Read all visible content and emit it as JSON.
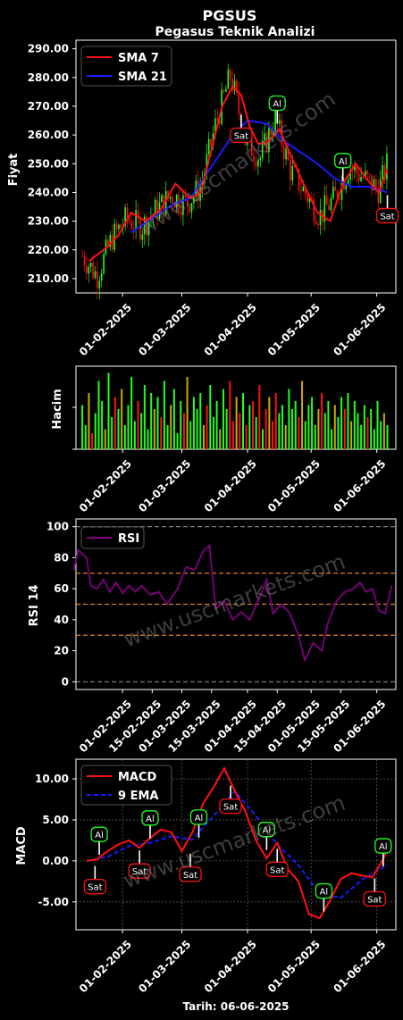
{
  "title": "PGSUS",
  "subtitle": "Pegasus Teknik Analizi",
  "footer": "Tarih: 06-06-2025",
  "watermark": "www.uscmarkets.com",
  "colors": {
    "up": "#22ff22",
    "down": "#ff1111",
    "sma7": "#ff1111",
    "sma21": "#1a1aff",
    "rsi": "#800080",
    "macd": "#ff1111",
    "ema": "#1a1aff",
    "buy": "#22ff22",
    "sell": "#ff1111"
  },
  "chart_data": [
    {
      "type": "candlestick",
      "ylabel": "Fiyat",
      "ylim": [
        205,
        293
      ],
      "yticks": [
        "210.00",
        "220.00",
        "230.00",
        "240.00",
        "250.00",
        "260.00",
        "270.00",
        "280.00",
        "290.00"
      ],
      "x_range": [
        "2025-01-10",
        "2025-06-10"
      ],
      "xticks": [
        "01-02-2025",
        "01-03-2025",
        "01-04-2025",
        "01-05-2025",
        "01-06-2025"
      ],
      "legend": [
        "SMA 7",
        "SMA 21"
      ],
      "close": [
        {
          "d": "2025-01-13",
          "v": 218
        },
        {
          "d": "2025-01-20",
          "v": 211
        },
        {
          "d": "2025-01-27",
          "v": 224
        },
        {
          "d": "2025-02-03",
          "v": 231
        },
        {
          "d": "2025-02-10",
          "v": 228
        },
        {
          "d": "2025-02-17",
          "v": 234
        },
        {
          "d": "2025-02-24",
          "v": 239
        },
        {
          "d": "2025-03-03",
          "v": 236
        },
        {
          "d": "2025-03-10",
          "v": 242
        },
        {
          "d": "2025-03-17",
          "v": 264
        },
        {
          "d": "2025-03-24",
          "v": 281
        },
        {
          "d": "2025-03-31",
          "v": 258
        },
        {
          "d": "2025-04-07",
          "v": 252
        },
        {
          "d": "2025-04-14",
          "v": 266
        },
        {
          "d": "2025-04-21",
          "v": 248
        },
        {
          "d": "2025-04-28",
          "v": 240
        },
        {
          "d": "2025-05-05",
          "v": 232
        },
        {
          "d": "2025-05-12",
          "v": 238
        },
        {
          "d": "2025-05-19",
          "v": 249
        },
        {
          "d": "2025-05-26",
          "v": 245
        },
        {
          "d": "2025-06-02",
          "v": 241
        },
        {
          "d": "2025-06-06",
          "v": 250
        }
      ],
      "sma7": [
        {
          "d": "2025-01-16",
          "v": 216
        },
        {
          "d": "2025-01-23",
          "v": 220
        },
        {
          "d": "2025-01-30",
          "v": 225
        },
        {
          "d": "2025-02-05",
          "v": 233
        },
        {
          "d": "2025-02-12",
          "v": 230
        },
        {
          "d": "2025-02-19",
          "v": 234
        },
        {
          "d": "2025-02-26",
          "v": 243
        },
        {
          "d": "2025-03-05",
          "v": 238
        },
        {
          "d": "2025-03-10",
          "v": 240
        },
        {
          "d": "2025-03-15",
          "v": 255
        },
        {
          "d": "2025-03-20",
          "v": 270
        },
        {
          "d": "2025-03-25",
          "v": 277
        },
        {
          "d": "2025-03-29",
          "v": 274
        },
        {
          "d": "2025-04-02",
          "v": 263
        },
        {
          "d": "2025-04-06",
          "v": 257
        },
        {
          "d": "2025-04-10",
          "v": 257
        },
        {
          "d": "2025-04-16",
          "v": 262
        },
        {
          "d": "2025-04-22",
          "v": 252
        },
        {
          "d": "2025-04-28",
          "v": 242
        },
        {
          "d": "2025-05-04",
          "v": 233
        },
        {
          "d": "2025-05-10",
          "v": 230
        },
        {
          "d": "2025-05-16",
          "v": 243
        },
        {
          "d": "2025-05-22",
          "v": 250
        },
        {
          "d": "2025-05-28",
          "v": 244
        },
        {
          "d": "2025-06-02",
          "v": 240
        },
        {
          "d": "2025-06-06",
          "v": 248
        }
      ],
      "sma21": [
        {
          "d": "2025-02-05",
          "v": 226
        },
        {
          "d": "2025-02-15",
          "v": 231
        },
        {
          "d": "2025-02-25",
          "v": 236
        },
        {
          "d": "2025-03-05",
          "v": 238
        },
        {
          "d": "2025-03-15",
          "v": 249
        },
        {
          "d": "2025-03-25",
          "v": 260
        },
        {
          "d": "2025-04-01",
          "v": 265
        },
        {
          "d": "2025-04-10",
          "v": 264
        },
        {
          "d": "2025-04-18",
          "v": 258
        },
        {
          "d": "2025-04-26",
          "v": 254
        },
        {
          "d": "2025-05-04",
          "v": 250
        },
        {
          "d": "2025-05-12",
          "v": 245
        },
        {
          "d": "2025-05-20",
          "v": 242
        },
        {
          "d": "2025-05-28",
          "v": 242
        },
        {
          "d": "2025-06-06",
          "v": 240
        }
      ],
      "signals": [
        {
          "label": "Sat",
          "d": "2025-03-29",
          "v": 268
        },
        {
          "label": "Al",
          "d": "2025-04-15",
          "v": 263
        },
        {
          "label": "Al",
          "d": "2025-05-16",
          "v": 243
        },
        {
          "label": "Sat",
          "d": "2025-06-06",
          "v": 240
        }
      ]
    },
    {
      "type": "bar",
      "ylabel": "Hacim",
      "xticks": [
        "01-02-2025",
        "01-03-2025",
        "01-04-2025",
        "01-05-2025",
        "01-06-2025"
      ],
      "volume": [
        0.55,
        0.3,
        0.7,
        0.2,
        0.45,
        0.85,
        0.6,
        0.25,
        0.95,
        0.4,
        0.65,
        0.5,
        0.75,
        0.3,
        0.55,
        0.9,
        0.35,
        0.6,
        0.45,
        0.8,
        0.25,
        0.7,
        0.5,
        0.65,
        0.4,
        0.85,
        0.3,
        0.55,
        0.75,
        0.2,
        0.6,
        0.45,
        0.9,
        0.35,
        0.65,
        0.5,
        0.7,
        0.3,
        0.55,
        0.8,
        0.4,
        0.6,
        0.25,
        0.75,
        0.5,
        0.85,
        0.35,
        0.65,
        0.45,
        0.7,
        0.3,
        0.55,
        0.6,
        0.4,
        0.8,
        0.25,
        0.5,
        0.65,
        0.35,
        0.7,
        0.45,
        0.55,
        0.3,
        0.75,
        0.5,
        0.6,
        0.4,
        0.85,
        0.35,
        0.55,
        0.65,
        0.3,
        0.5,
        0.7,
        0.45,
        0.6,
        0.25,
        0.55,
        0.4,
        0.65,
        0.5,
        0.7,
        0.35,
        0.6,
        0.45,
        0.3,
        0.55,
        0.4,
        0.5,
        0.25,
        0.6,
        0.35,
        0.45,
        0.3
      ]
    },
    {
      "type": "line",
      "ylabel": "RSI 14",
      "ylim": [
        -5,
        105
      ],
      "yticks": [
        "0",
        "20",
        "40",
        "60",
        "80",
        "100"
      ],
      "levels": [
        0,
        30,
        50,
        70,
        100
      ],
      "xticks": [
        "01-02-2025",
        "15-02-2025",
        "01-03-2025",
        "15-03-2025",
        "01-04-2025",
        "15-04-2025",
        "01-05-2025",
        "15-05-2025",
        "01-06-2025"
      ],
      "legend": [
        "RSI"
      ],
      "rsi": [
        {
          "d": "2025-01-09",
          "v": 72
        },
        {
          "d": "2025-01-11",
          "v": 85
        },
        {
          "d": "2025-01-15",
          "v": 80
        },
        {
          "d": "2025-01-17",
          "v": 62
        },
        {
          "d": "2025-01-20",
          "v": 60
        },
        {
          "d": "2025-01-23",
          "v": 66
        },
        {
          "d": "2025-01-26",
          "v": 58
        },
        {
          "d": "2025-01-29",
          "v": 64
        },
        {
          "d": "2025-02-01",
          "v": 57
        },
        {
          "d": "2025-02-04",
          "v": 62
        },
        {
          "d": "2025-02-07",
          "v": 58
        },
        {
          "d": "2025-02-10",
          "v": 62
        },
        {
          "d": "2025-02-14",
          "v": 56
        },
        {
          "d": "2025-02-18",
          "v": 58
        },
        {
          "d": "2025-02-22",
          "v": 50
        },
        {
          "d": "2025-02-27",
          "v": 60
        },
        {
          "d": "2025-03-03",
          "v": 74
        },
        {
          "d": "2025-03-07",
          "v": 72
        },
        {
          "d": "2025-03-11",
          "v": 84
        },
        {
          "d": "2025-03-14",
          "v": 88
        },
        {
          "d": "2025-03-17",
          "v": 47
        },
        {
          "d": "2025-03-21",
          "v": 52
        },
        {
          "d": "2025-03-25",
          "v": 40
        },
        {
          "d": "2025-03-29",
          "v": 45
        },
        {
          "d": "2025-04-02",
          "v": 40
        },
        {
          "d": "2025-04-06",
          "v": 52
        },
        {
          "d": "2025-04-10",
          "v": 66
        },
        {
          "d": "2025-04-13",
          "v": 44
        },
        {
          "d": "2025-04-17",
          "v": 50
        },
        {
          "d": "2025-04-21",
          "v": 44
        },
        {
          "d": "2025-04-25",
          "v": 30
        },
        {
          "d": "2025-04-28",
          "v": 14
        },
        {
          "d": "2025-05-02",
          "v": 25
        },
        {
          "d": "2025-05-06",
          "v": 20
        },
        {
          "d": "2025-05-09",
          "v": 38
        },
        {
          "d": "2025-05-13",
          "v": 52
        },
        {
          "d": "2025-05-17",
          "v": 58
        },
        {
          "d": "2025-05-21",
          "v": 60
        },
        {
          "d": "2025-05-24",
          "v": 64
        },
        {
          "d": "2025-05-27",
          "v": 58
        },
        {
          "d": "2025-05-30",
          "v": 60
        },
        {
          "d": "2025-06-02",
          "v": 46
        },
        {
          "d": "2025-06-05",
          "v": 44
        },
        {
          "d": "2025-06-08",
          "v": 62
        }
      ]
    },
    {
      "type": "line",
      "ylabel": "MACD",
      "ylim": [
        -8.4,
        12.4
      ],
      "yticks": [
        "-5.00",
        "0.00",
        "5.00",
        "10.00"
      ],
      "xticks": [
        "01-02-2025",
        "01-03-2025",
        "01-04-2025",
        "01-05-2025",
        "01-06-2025"
      ],
      "legend": [
        "MACD",
        "9 EMA"
      ],
      "macd": [
        {
          "d": "2025-01-15",
          "v": 0
        },
        {
          "d": "2025-01-20",
          "v": 0.2
        },
        {
          "d": "2025-01-25",
          "v": 1.2
        },
        {
          "d": "2025-01-30",
          "v": 2.0
        },
        {
          "d": "2025-02-04",
          "v": 2.5
        },
        {
          "d": "2025-02-09",
          "v": 1.6
        },
        {
          "d": "2025-02-14",
          "v": 2.8
        },
        {
          "d": "2025-02-19",
          "v": 3.8
        },
        {
          "d": "2025-02-24",
          "v": 3.5
        },
        {
          "d": "2025-03-01",
          "v": 1.2
        },
        {
          "d": "2025-03-06",
          "v": 3.5
        },
        {
          "d": "2025-03-11",
          "v": 7.0
        },
        {
          "d": "2025-03-16",
          "v": 9.0
        },
        {
          "d": "2025-03-21",
          "v": 11.3
        },
        {
          "d": "2025-03-26",
          "v": 8.5
        },
        {
          "d": "2025-03-31",
          "v": 6.0
        },
        {
          "d": "2025-04-05",
          "v": 2.5
        },
        {
          "d": "2025-04-10",
          "v": 0.3
        },
        {
          "d": "2025-04-15",
          "v": 2.2
        },
        {
          "d": "2025-04-20",
          "v": -1.0
        },
        {
          "d": "2025-04-25",
          "v": -2.5
        },
        {
          "d": "2025-04-30",
          "v": -6.5
        },
        {
          "d": "2025-05-05",
          "v": -7.0
        },
        {
          "d": "2025-05-10",
          "v": -4.8
        },
        {
          "d": "2025-05-15",
          "v": -2.2
        },
        {
          "d": "2025-05-20",
          "v": -1.5
        },
        {
          "d": "2025-05-25",
          "v": -1.8
        },
        {
          "d": "2025-05-30",
          "v": -2.0
        },
        {
          "d": "2025-06-04",
          "v": 0.2
        },
        {
          "d": "2025-06-06",
          "v": 1.5
        }
      ],
      "ema": [
        {
          "d": "2025-01-15",
          "v": 0
        },
        {
          "d": "2025-01-25",
          "v": 0.5
        },
        {
          "d": "2025-02-04",
          "v": 1.8
        },
        {
          "d": "2025-02-14",
          "v": 2.2
        },
        {
          "d": "2025-02-24",
          "v": 3.0
        },
        {
          "d": "2025-03-06",
          "v": 2.6
        },
        {
          "d": "2025-03-16",
          "v": 5.5
        },
        {
          "d": "2025-03-26",
          "v": 8.5
        },
        {
          "d": "2025-04-05",
          "v": 5.5
        },
        {
          "d": "2025-04-15",
          "v": 2.0
        },
        {
          "d": "2025-04-25",
          "v": -0.5
        },
        {
          "d": "2025-05-05",
          "v": -4.0
        },
        {
          "d": "2025-05-15",
          "v": -4.5
        },
        {
          "d": "2025-05-25",
          "v": -2.3
        },
        {
          "d": "2025-06-06",
          "v": -0.5
        }
      ],
      "signals": [
        {
          "label": "Al",
          "d": "2025-01-21",
          "v": 0.4
        },
        {
          "label": "Sat",
          "d": "2025-01-19",
          "v": -0.3
        },
        {
          "label": "Al",
          "d": "2025-02-14",
          "v": 2.4
        },
        {
          "label": "Sat",
          "d": "2025-02-09",
          "v": 1.6
        },
        {
          "label": "Al",
          "d": "2025-03-09",
          "v": 2.5
        },
        {
          "label": "Sat",
          "d": "2025-03-05",
          "v": 1.2
        },
        {
          "label": "Sat",
          "d": "2025-03-24",
          "v": 9.5
        },
        {
          "label": "Al",
          "d": "2025-04-10",
          "v": 1.0
        },
        {
          "label": "Sat",
          "d": "2025-04-15",
          "v": 1.8
        },
        {
          "label": "Al",
          "d": "2025-05-07",
          "v": -6.5
        },
        {
          "label": "Sat",
          "d": "2025-05-31",
          "v": -1.8
        },
        {
          "label": "Al",
          "d": "2025-06-04",
          "v": -1.0
        }
      ]
    }
  ]
}
